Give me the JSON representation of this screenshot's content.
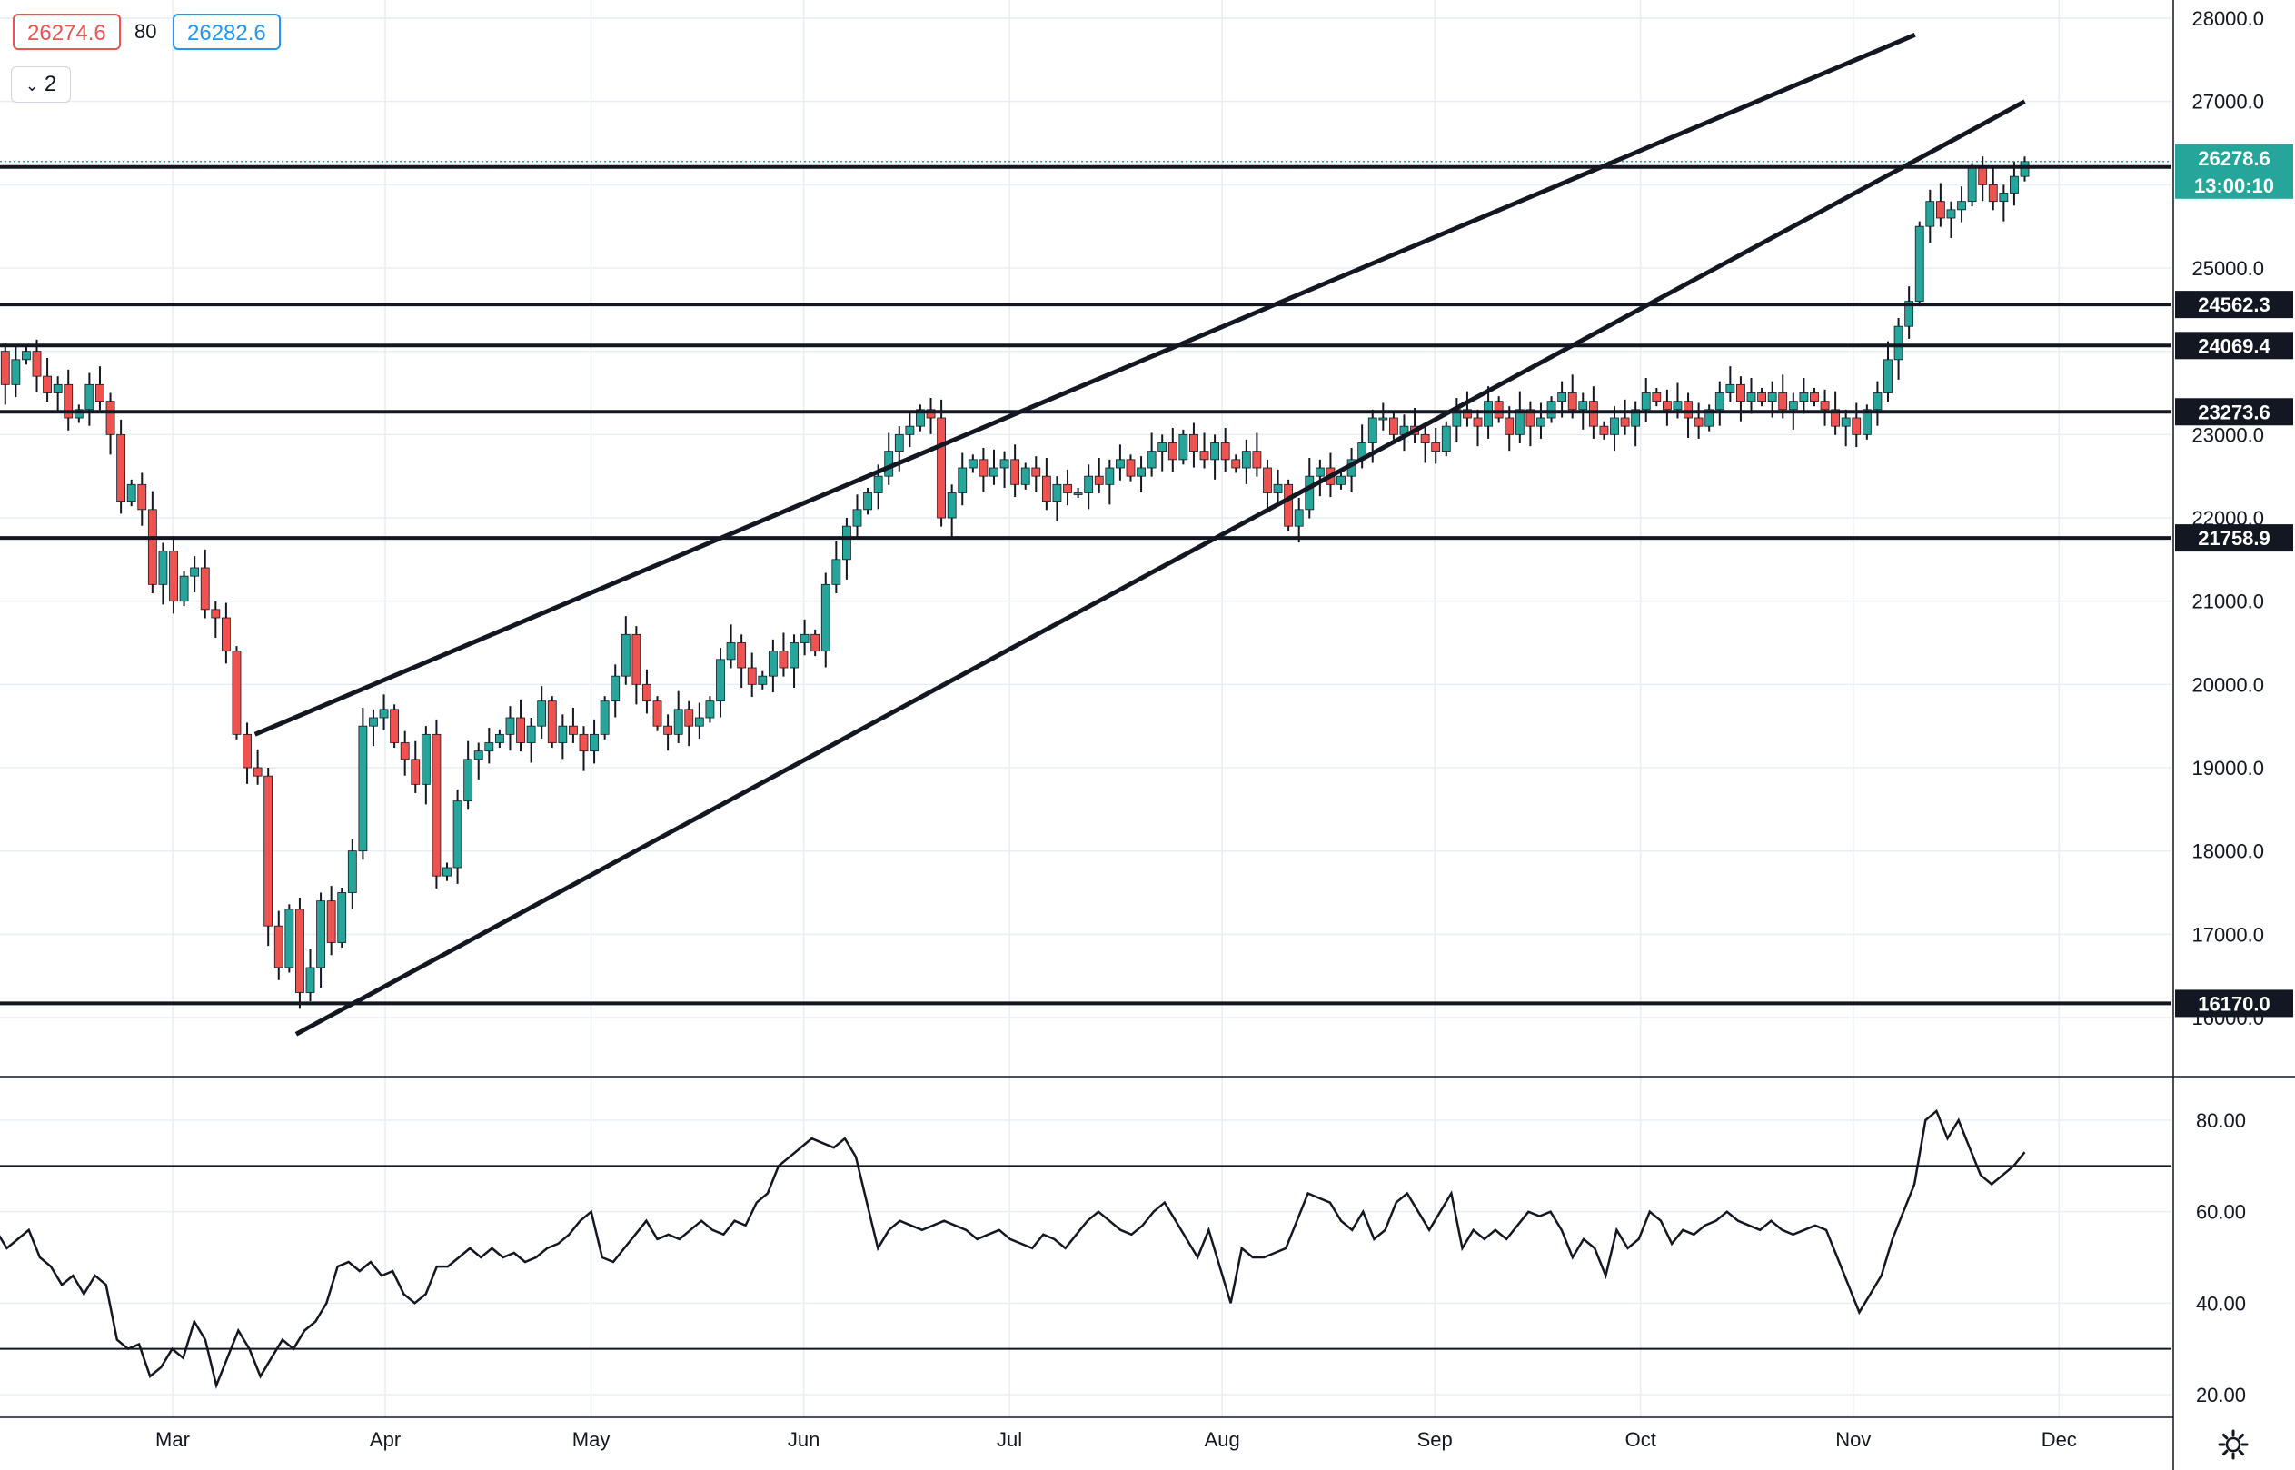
{
  "header": {
    "bid": "26274.6",
    "spread": "80",
    "ask": "26282.6",
    "interval_label": "2"
  },
  "colors": {
    "up": "#26a69a",
    "down": "#ef5350",
    "line": "#131722",
    "grid": "#e7eef3",
    "price_tag": "#26a69a"
  },
  "chart_data": [
    {
      "type": "candlestick",
      "x_labels": [
        "Mar",
        "Apr",
        "May",
        "Jun",
        "Jul",
        "Aug",
        "Sep",
        "Oct",
        "Nov",
        "Dec"
      ],
      "y_ticks": [
        16000,
        17000,
        18000,
        19000,
        20000,
        21000,
        22000,
        23000,
        24000,
        25000,
        26000,
        27000,
        28000
      ],
      "y_tick_labels": [
        "16000.0",
        "17000.0",
        "18000.0",
        "19000.0",
        "20000.0",
        "21000.0",
        "22000.0",
        "23000.0",
        "24000.0",
        "25000.0",
        "26000.0",
        "27000.0",
        "28000.0"
      ],
      "ylim": [
        15400,
        28300
      ],
      "horizontal_levels": [
        {
          "value": 26213.4,
          "label": "26213.4"
        },
        {
          "value": 24562.3,
          "label": "24562.3"
        },
        {
          "value": 24069.4,
          "label": "24069.4"
        },
        {
          "value": 23273.6,
          "label": "23273.6"
        },
        {
          "value": 21758.9,
          "label": "21758.9"
        },
        {
          "value": 16170.0,
          "label": "16170.0"
        }
      ],
      "current_price": {
        "value": 26278.6,
        "label": "26278.6",
        "countdown": "13:00:10"
      },
      "trend_lines": [
        {
          "from": [
            "Mar 13",
            19400
          ],
          "to": [
            "Nov 10",
            27800
          ]
        },
        {
          "from": [
            "Mar 19",
            15800
          ],
          "to": [
            "Nov 26",
            27000
          ]
        }
      ],
      "series_close": [
        23500,
        23900,
        24000,
        23600,
        23900,
        24000,
        23700,
        23500,
        23600,
        23200,
        23300,
        23600,
        23400,
        23000,
        22200,
        22400,
        22100,
        21200,
        21600,
        21000,
        21300,
        21400,
        20900,
        20800,
        20400,
        19400,
        19000,
        18900,
        17100,
        16600,
        17300,
        16300,
        16600,
        17400,
        16900,
        17500,
        18000,
        19500,
        19600,
        19700,
        19300,
        19100,
        18800,
        19400,
        17700,
        17800,
        18600,
        19100,
        19200,
        19300,
        19400,
        19600,
        19300,
        19500,
        19800,
        19300,
        19500,
        19400,
        19200,
        19400,
        19800,
        20100,
        20600,
        20000,
        19800,
        19500,
        19400,
        19700,
        19500,
        19600,
        19800,
        20300,
        20500,
        20200,
        20000,
        20100,
        20400,
        20200,
        20500,
        20600,
        20400,
        21200,
        21500,
        21900,
        22100,
        22300,
        22500,
        22800,
        23000,
        23100,
        23300,
        23200,
        22000,
        22300,
        22600,
        22700,
        22500,
        22600,
        22700,
        22400,
        22600,
        22500,
        22200,
        22400,
        22300,
        22300,
        22500,
        22400,
        22600,
        22700,
        22500,
        22600,
        22800,
        22900,
        22700,
        23000,
        22800,
        22700,
        22900,
        22700,
        22600,
        22800,
        22600,
        22300,
        22400,
        21900,
        22100,
        22500,
        22600,
        22400,
        22500,
        22700,
        22900,
        23200,
        23200,
        23000,
        23100,
        23000,
        22900,
        22800,
        23100,
        23300,
        23200,
        23100,
        23400,
        23200,
        23000,
        23300,
        23100,
        23200,
        23400,
        23500,
        23300,
        23400,
        23100,
        23000,
        23200,
        23100,
        23300,
        23500,
        23400,
        23300,
        23400,
        23200,
        23100,
        23300,
        23500,
        23600,
        23400,
        23500,
        23400,
        23500,
        23300,
        23400,
        23500,
        23400,
        23300,
        23100,
        23200,
        23000,
        23300,
        23500,
        23900,
        24300,
        24600,
        25500,
        25800,
        25600,
        25700,
        25800,
        26200,
        26000,
        25800,
        25900,
        26100,
        26278.6
      ],
      "series_name": ""
    },
    {
      "type": "line",
      "y_ticks": [
        20,
        40,
        60,
        80
      ],
      "y_tick_labels": [
        "20.00",
        "40.00",
        "60.00",
        "80.00"
      ],
      "ylim": [
        14,
        90
      ],
      "bands": [
        30,
        70
      ],
      "values": [
        52,
        58,
        56,
        52,
        54,
        56,
        50,
        48,
        44,
        46,
        42,
        46,
        44,
        32,
        30,
        31,
        24,
        26,
        30,
        28,
        36,
        32,
        22,
        28,
        34,
        30,
        24,
        28,
        32,
        30,
        34,
        36,
        40,
        48,
        49,
        47,
        49,
        46,
        47,
        42,
        40,
        42,
        48,
        48,
        50,
        52,
        50,
        52,
        50,
        51,
        49,
        50,
        52,
        53,
        55,
        58,
        60,
        50,
        49,
        52,
        55,
        58,
        54,
        55,
        54,
        56,
        58,
        56,
        55,
        58,
        57,
        62,
        64,
        70,
        72,
        74,
        76,
        75,
        74,
        76,
        72,
        62,
        52,
        56,
        58,
        57,
        56,
        57,
        58,
        57,
        56,
        54,
        55,
        56,
        54,
        53,
        52,
        55,
        54,
        52,
        55,
        58,
        60,
        58,
        56,
        55,
        57,
        60,
        62,
        58,
        54,
        50,
        56,
        48,
        40,
        52,
        50,
        50,
        51,
        52,
        58,
        64,
        63,
        62,
        58,
        56,
        60,
        54,
        56,
        62,
        64,
        60,
        56,
        60,
        64,
        52,
        56,
        54,
        56,
        54,
        57,
        60,
        59,
        60,
        56,
        50,
        54,
        52,
        46,
        56,
        52,
        54,
        60,
        58,
        53,
        56,
        55,
        57,
        58,
        60,
        58,
        57,
        56,
        58,
        56,
        55,
        56,
        57,
        56,
        50,
        44,
        38,
        42,
        46,
        54,
        60,
        66,
        80,
        82,
        76,
        80,
        74,
        68,
        66,
        68,
        70,
        73
      ]
    }
  ]
}
